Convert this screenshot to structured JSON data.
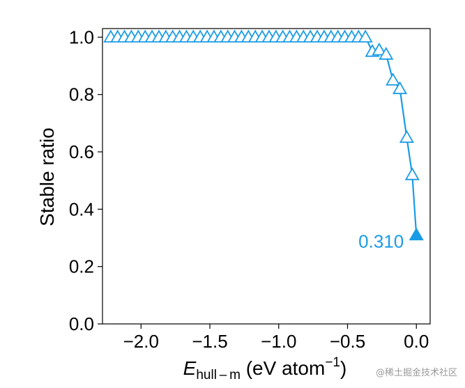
{
  "chart_data": {
    "type": "line",
    "title": "",
    "xlabel": {
      "main": "E",
      "subscript": "hull – m",
      "units": " (eV atom",
      "superscript": "−1",
      "close": ")"
    },
    "ylabel": "Stable ratio",
    "xlim": [
      -2.28,
      0.1
    ],
    "ylim": [
      0.0,
      1.03
    ],
    "xticks": [
      -2.0,
      -1.5,
      -1.0,
      -0.5,
      0.0
    ],
    "xtick_labels": [
      "−2.0",
      "−1.5",
      "−1.0",
      "−0.5",
      "0.0"
    ],
    "yticks": [
      0.0,
      0.2,
      0.4,
      0.6,
      0.8,
      1.0
    ],
    "ytick_labels": [
      "0.0",
      "0.2",
      "0.4",
      "0.6",
      "0.8",
      "1.0"
    ],
    "grid": false,
    "color": "#1a9be6",
    "series": [
      {
        "marker": "triangle-up-open",
        "x": [
          -2.22,
          -2.17,
          -2.12,
          -2.07,
          -2.02,
          -1.97,
          -1.92,
          -1.87,
          -1.82,
          -1.77,
          -1.72,
          -1.67,
          -1.62,
          -1.57,
          -1.52,
          -1.47,
          -1.42,
          -1.37,
          -1.32,
          -1.27,
          -1.22,
          -1.17,
          -1.12,
          -1.07,
          -1.02,
          -0.97,
          -0.92,
          -0.87,
          -0.82,
          -0.77,
          -0.72,
          -0.67,
          -0.62,
          -0.57,
          -0.52,
          -0.47,
          -0.42,
          -0.37,
          -0.32,
          -0.27,
          -0.22,
          -0.17,
          -0.12,
          -0.07,
          -0.03,
          0.0
        ],
        "y": [
          1.0,
          1.0,
          1.0,
          1.0,
          1.0,
          1.0,
          1.0,
          1.0,
          1.0,
          1.0,
          1.0,
          1.0,
          1.0,
          1.0,
          1.0,
          1.0,
          1.0,
          1.0,
          1.0,
          1.0,
          1.0,
          1.0,
          1.0,
          1.0,
          1.0,
          1.0,
          1.0,
          1.0,
          1.0,
          1.0,
          1.0,
          1.0,
          1.0,
          1.0,
          1.0,
          1.0,
          1.0,
          1.0,
          0.95,
          0.955,
          0.94,
          0.85,
          0.82,
          0.65,
          0.52,
          0.31
        ],
        "filled_last": true
      }
    ],
    "annotation": {
      "text": "0.310",
      "x": 0.0,
      "y": 0.31
    }
  },
  "watermark": "@稀土掘金技术社区"
}
